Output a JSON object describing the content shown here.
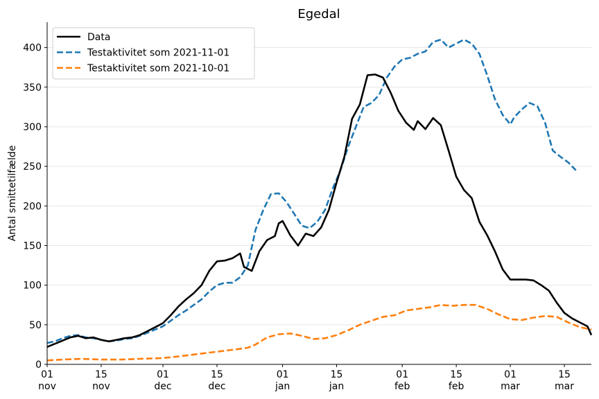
{
  "chart_data": {
    "type": "line",
    "title": "Egedal",
    "xlabel": "",
    "ylabel": "Antal smittetilfælde",
    "ylim": [
      0,
      432
    ],
    "yticks": [
      0,
      50,
      100,
      150,
      200,
      250,
      300,
      350,
      400
    ],
    "xlim": [
      "2021-11-01",
      "2022-03-22"
    ],
    "xticks": [
      {
        "date": "2021-11-01",
        "day": "01",
        "month": "nov"
      },
      {
        "date": "2021-11-15",
        "day": "15",
        "month": "nov"
      },
      {
        "date": "2021-12-01",
        "day": "01",
        "month": "dec"
      },
      {
        "date": "2021-12-15",
        "day": "15",
        "month": "dec"
      },
      {
        "date": "2022-01-01",
        "day": "01",
        "month": "jan"
      },
      {
        "date": "2022-01-15",
        "day": "15",
        "month": "jan"
      },
      {
        "date": "2022-02-01",
        "day": "01",
        "month": "feb"
      },
      {
        "date": "2022-02-15",
        "day": "15",
        "month": "feb"
      },
      {
        "date": "2022-03-01",
        "day": "01",
        "month": "mar"
      },
      {
        "date": "2022-03-15",
        "day": "15",
        "month": "mar"
      }
    ],
    "grid": "horizontal",
    "legend_position": "top-left",
    "series": [
      {
        "name": "Data",
        "color": "#000000",
        "style": "solid",
        "points": [
          [
            "2021-11-01",
            22
          ],
          [
            "2021-11-03",
            26
          ],
          [
            "2021-11-05",
            30
          ],
          [
            "2021-11-07",
            34
          ],
          [
            "2021-11-09",
            36
          ],
          [
            "2021-11-11",
            33
          ],
          [
            "2021-11-13",
            34
          ],
          [
            "2021-11-15",
            31
          ],
          [
            "2021-11-17",
            29
          ],
          [
            "2021-11-19",
            31
          ],
          [
            "2021-11-21",
            33
          ],
          [
            "2021-11-23",
            34
          ],
          [
            "2021-11-25",
            37
          ],
          [
            "2021-11-27",
            42
          ],
          [
            "2021-11-29",
            47
          ],
          [
            "2021-12-01",
            52
          ],
          [
            "2021-12-03",
            62
          ],
          [
            "2021-12-05",
            73
          ],
          [
            "2021-12-07",
            82
          ],
          [
            "2021-12-09",
            90
          ],
          [
            "2021-12-11",
            100
          ],
          [
            "2021-12-13",
            118
          ],
          [
            "2021-12-15",
            130
          ],
          [
            "2021-12-17",
            131
          ],
          [
            "2021-12-19",
            134
          ],
          [
            "2021-12-21",
            140
          ],
          [
            "2021-12-22",
            123
          ],
          [
            "2021-12-24",
            118
          ],
          [
            "2021-12-26",
            143
          ],
          [
            "2021-12-28",
            157
          ],
          [
            "2021-12-30",
            162
          ],
          [
            "2021-12-31",
            178
          ],
          [
            "2022-01-01",
            181
          ],
          [
            "2022-01-03",
            163
          ],
          [
            "2022-01-05",
            150
          ],
          [
            "2022-01-07",
            165
          ],
          [
            "2022-01-09",
            162
          ],
          [
            "2022-01-11",
            173
          ],
          [
            "2022-01-13",
            195
          ],
          [
            "2022-01-15",
            230
          ],
          [
            "2022-01-17",
            262
          ],
          [
            "2022-01-19",
            310
          ],
          [
            "2022-01-21",
            328
          ],
          [
            "2022-01-23",
            365
          ],
          [
            "2022-01-25",
            366
          ],
          [
            "2022-01-27",
            362
          ],
          [
            "2022-01-29",
            343
          ],
          [
            "2022-01-31",
            320
          ],
          [
            "2022-02-02",
            305
          ],
          [
            "2022-02-04",
            296
          ],
          [
            "2022-02-05",
            307
          ],
          [
            "2022-02-07",
            297
          ],
          [
            "2022-02-09",
            311
          ],
          [
            "2022-02-11",
            302
          ],
          [
            "2022-02-13",
            270
          ],
          [
            "2022-02-15",
            237
          ],
          [
            "2022-02-17",
            220
          ],
          [
            "2022-02-19",
            210
          ],
          [
            "2022-02-21",
            180
          ],
          [
            "2022-02-23",
            163
          ],
          [
            "2022-02-25",
            143
          ],
          [
            "2022-02-27",
            120
          ],
          [
            "2022-03-01",
            107
          ],
          [
            "2022-03-03",
            107
          ],
          [
            "2022-03-05",
            107
          ],
          [
            "2022-03-07",
            106
          ],
          [
            "2022-03-09",
            100
          ],
          [
            "2022-03-11",
            93
          ],
          [
            "2022-03-13",
            78
          ],
          [
            "2022-03-15",
            65
          ],
          [
            "2022-03-17",
            58
          ],
          [
            "2022-03-19",
            53
          ],
          [
            "2022-03-21",
            48
          ],
          [
            "2022-03-22",
            37
          ]
        ]
      },
      {
        "name": "Testaktivitet som 2021-11-01",
        "color": "#1f77b4",
        "style": "dashed",
        "points": [
          [
            "2021-11-01",
            27
          ],
          [
            "2021-11-03",
            29
          ],
          [
            "2021-11-05",
            33
          ],
          [
            "2021-11-07",
            36
          ],
          [
            "2021-11-09",
            37
          ],
          [
            "2021-11-11",
            34
          ],
          [
            "2021-11-13",
            33
          ],
          [
            "2021-11-15",
            31
          ],
          [
            "2021-11-17",
            29
          ],
          [
            "2021-11-19",
            30
          ],
          [
            "2021-11-21",
            32
          ],
          [
            "2021-11-23",
            33
          ],
          [
            "2021-11-25",
            36
          ],
          [
            "2021-11-27",
            40
          ],
          [
            "2021-11-29",
            44
          ],
          [
            "2021-12-01",
            48
          ],
          [
            "2021-12-03",
            55
          ],
          [
            "2021-12-05",
            62
          ],
          [
            "2021-12-07",
            68
          ],
          [
            "2021-12-09",
            75
          ],
          [
            "2021-12-11",
            82
          ],
          [
            "2021-12-13",
            92
          ],
          [
            "2021-12-15",
            100
          ],
          [
            "2021-12-17",
            103
          ],
          [
            "2021-12-19",
            103
          ],
          [
            "2021-12-21",
            110
          ],
          [
            "2021-12-23",
            125
          ],
          [
            "2021-12-25",
            170
          ],
          [
            "2021-12-27",
            195
          ],
          [
            "2021-12-29",
            215
          ],
          [
            "2021-12-31",
            216
          ],
          [
            "2022-01-02",
            205
          ],
          [
            "2022-01-04",
            190
          ],
          [
            "2022-01-06",
            175
          ],
          [
            "2022-01-08",
            172
          ],
          [
            "2022-01-10",
            180
          ],
          [
            "2022-01-12",
            195
          ],
          [
            "2022-01-14",
            222
          ],
          [
            "2022-01-16",
            245
          ],
          [
            "2022-01-18",
            275
          ],
          [
            "2022-01-20",
            300
          ],
          [
            "2022-01-22",
            325
          ],
          [
            "2022-01-24",
            330
          ],
          [
            "2022-01-26",
            340
          ],
          [
            "2022-01-28",
            362
          ],
          [
            "2022-01-30",
            376
          ],
          [
            "2022-02-01",
            385
          ],
          [
            "2022-02-03",
            387
          ],
          [
            "2022-02-05",
            392
          ],
          [
            "2022-02-07",
            395
          ],
          [
            "2022-02-09",
            407
          ],
          [
            "2022-02-11",
            410
          ],
          [
            "2022-02-13",
            400
          ],
          [
            "2022-02-15",
            405
          ],
          [
            "2022-02-17",
            410
          ],
          [
            "2022-02-19",
            405
          ],
          [
            "2022-02-21",
            392
          ],
          [
            "2022-02-23",
            365
          ],
          [
            "2022-02-25",
            335
          ],
          [
            "2022-02-27",
            315
          ],
          [
            "2022-02-29",
            303
          ],
          [
            "2022-03-02",
            312
          ],
          [
            "2022-03-04",
            322
          ],
          [
            "2022-03-06",
            330
          ],
          [
            "2022-03-08",
            326
          ],
          [
            "2022-03-10",
            305
          ],
          [
            "2022-03-12",
            270
          ],
          [
            "2022-03-14",
            262
          ],
          [
            "2022-03-16",
            255
          ],
          [
            "2022-03-18",
            245
          ]
        ]
      },
      {
        "name": "Testaktivitet som 2021-10-01",
        "color": "#ff7f0e",
        "style": "dashed",
        "points": [
          [
            "2021-11-01",
            5
          ],
          [
            "2021-11-05",
            6
          ],
          [
            "2021-11-10",
            7
          ],
          [
            "2021-11-15",
            6
          ],
          [
            "2021-11-20",
            6
          ],
          [
            "2021-11-25",
            7
          ],
          [
            "2021-12-01",
            8
          ],
          [
            "2021-12-05",
            10
          ],
          [
            "2021-12-10",
            13
          ],
          [
            "2021-12-15",
            16
          ],
          [
            "2021-12-20",
            19
          ],
          [
            "2021-12-23",
            21
          ],
          [
            "2021-12-25",
            25
          ],
          [
            "2021-12-28",
            34
          ],
          [
            "2021-12-31",
            38
          ],
          [
            "2022-01-03",
            39
          ],
          [
            "2022-01-06",
            36
          ],
          [
            "2022-01-09",
            32
          ],
          [
            "2022-01-12",
            33
          ],
          [
            "2022-01-15",
            37
          ],
          [
            "2022-01-18",
            43
          ],
          [
            "2022-01-21",
            50
          ],
          [
            "2022-01-24",
            55
          ],
          [
            "2022-01-27",
            60
          ],
          [
            "2022-01-30",
            62
          ],
          [
            "2022-02-02",
            68
          ],
          [
            "2022-02-05",
            70
          ],
          [
            "2022-02-08",
            72
          ],
          [
            "2022-02-11",
            75
          ],
          [
            "2022-02-14",
            74
          ],
          [
            "2022-02-17",
            75
          ],
          [
            "2022-02-20",
            75
          ],
          [
            "2022-02-23",
            70
          ],
          [
            "2022-02-26",
            63
          ],
          [
            "2022-03-01",
            57
          ],
          [
            "2022-03-04",
            56
          ],
          [
            "2022-03-07",
            59
          ],
          [
            "2022-03-10",
            61
          ],
          [
            "2022-03-13",
            60
          ],
          [
            "2022-03-16",
            53
          ],
          [
            "2022-03-19",
            47
          ],
          [
            "2022-03-22",
            44
          ]
        ]
      }
    ]
  }
}
